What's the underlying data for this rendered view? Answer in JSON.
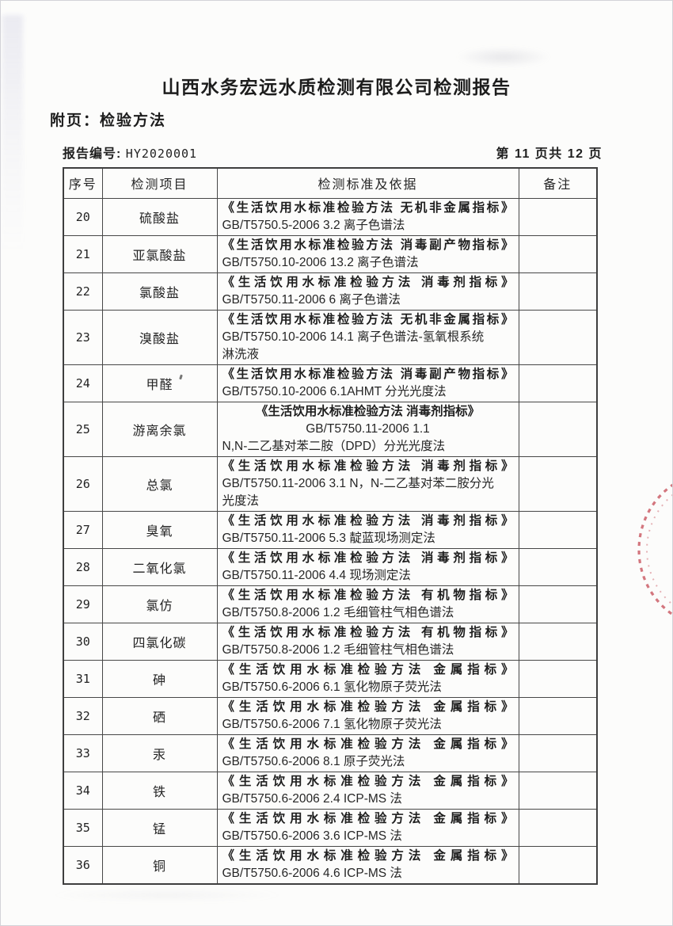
{
  "page": {
    "title": "山西水务宏远水质检测有限公司检测报告",
    "appendix_label": "附页：检验方法",
    "report_no_label": "报告编号:",
    "report_no_value": "HY2020001",
    "page_indicator": "第 11 页共 12 页"
  },
  "table": {
    "headers": [
      "序号",
      "检测项目",
      "检测标准及依据",
      "备注"
    ],
    "rows": [
      {
        "no": "20",
        "item": "硫酸盐",
        "standard_lines": [
          "《生活饮用水标准检验方法 无机非金属指标》",
          "GB/T5750.5-2006  3.2 离子色谱法"
        ],
        "remark": ""
      },
      {
        "no": "21",
        "item": "亚氯酸盐",
        "standard_lines": [
          "《生活饮用水标准检验方法 消毒副产物指标》",
          "GB/T5750.10-2006  13.2 离子色谱法"
        ],
        "remark": ""
      },
      {
        "no": "22",
        "item": "氯酸盐",
        "standard_lines": [
          "《生活饮用水标准检验方法 消毒剂指标》",
          "GB/T5750.11-2006  6 离子色谱法"
        ],
        "remark": ""
      },
      {
        "no": "23",
        "item": "溴酸盐",
        "standard_lines": [
          "《生活饮用水标准检验方法 无机非金属指标》",
          "GB/T5750.10-2006  14.1 离子色谱法-氢氧根系统",
          "淋洗液"
        ],
        "remark": ""
      },
      {
        "no": "24",
        "item": "甲醛",
        "artifact": "tick",
        "standard_lines": [
          "《生活饮用水标准检验方法 消毒副产物指标》",
          "GB/T5750.10-2006  6.1AHMT 分光光度法"
        ],
        "remark": ""
      },
      {
        "no": "25",
        "item": "游离余氯",
        "center_lines": [
          0,
          1
        ],
        "standard_lines": [
          "《生活饮用水标准检验方法 消毒剂指标》",
          "GB/T5750.11-2006 1.1",
          "N,N-二乙基对苯二胺（DPD）分光光度法"
        ],
        "remark": ""
      },
      {
        "no": "26",
        "item": "总氯",
        "standard_lines": [
          "《生活饮用水标准检验方法 消毒剂指标》",
          "GB/T5750.11-2006  3.1 N，N-二乙基对苯二胺分光",
          "光度法"
        ],
        "remark": ""
      },
      {
        "no": "27",
        "item": "臭氧",
        "standard_lines": [
          "《生活饮用水标准检验方法 消毒剂指标》",
          "GB/T5750.11-2006  5.3 靛蓝现场测定法"
        ],
        "remark": ""
      },
      {
        "no": "28",
        "item": "二氧化氯",
        "standard_lines": [
          "《生活饮用水标准检验方法 消毒剂指标》",
          "GB/T5750.11-2006  4.4 现场测定法"
        ],
        "remark": ""
      },
      {
        "no": "29",
        "item": "氯仿",
        "standard_lines": [
          "《生活饮用水标准检验方法 有机物指标》",
          "GB/T5750.8-2006  1.2 毛细管柱气相色谱法"
        ],
        "remark": ""
      },
      {
        "no": "30",
        "item": "四氯化碳",
        "standard_lines": [
          "《生活饮用水标准检验方法 有机物指标》",
          "GB/T5750.8-2006  1.2 毛细管柱气相色谱法"
        ],
        "remark": ""
      },
      {
        "no": "31",
        "item": "砷",
        "standard_lines": [
          "《生活饮用水标准检验方法 金属指标》",
          "GB/T5750.6-2006  6.1 氢化物原子荧光法"
        ],
        "remark": ""
      },
      {
        "no": "32",
        "item": "硒",
        "standard_lines": [
          "《生活饮用水标准检验方法 金属指标》",
          "GB/T5750.6-2006  7.1 氢化物原子荧光法"
        ],
        "remark": ""
      },
      {
        "no": "33",
        "item": "汞",
        "standard_lines": [
          "《生活饮用水标准检验方法 金属指标》",
          "GB/T5750.6-2006  8.1 原子荧光法"
        ],
        "remark": ""
      },
      {
        "no": "34",
        "item": "铁",
        "standard_lines": [
          "《生活饮用水标准检验方法 金属指标》",
          "GB/T5750.6-2006  2.4 ICP-MS 法"
        ],
        "remark": ""
      },
      {
        "no": "35",
        "item": "锰",
        "standard_lines": [
          "《生活饮用水标准检验方法 金属指标》",
          "GB/T5750.6-2006  3.6 ICP-MS 法"
        ],
        "remark": ""
      },
      {
        "no": "36",
        "item": "铜",
        "standard_lines": [
          "《生活饮用水标准检验方法 金属指标》",
          "GB/T5750.6-2006  4.6 ICP-MS 法"
        ],
        "remark": ""
      }
    ]
  },
  "stamp": {
    "label": "red-seal-partial",
    "color": "#c4424e"
  }
}
